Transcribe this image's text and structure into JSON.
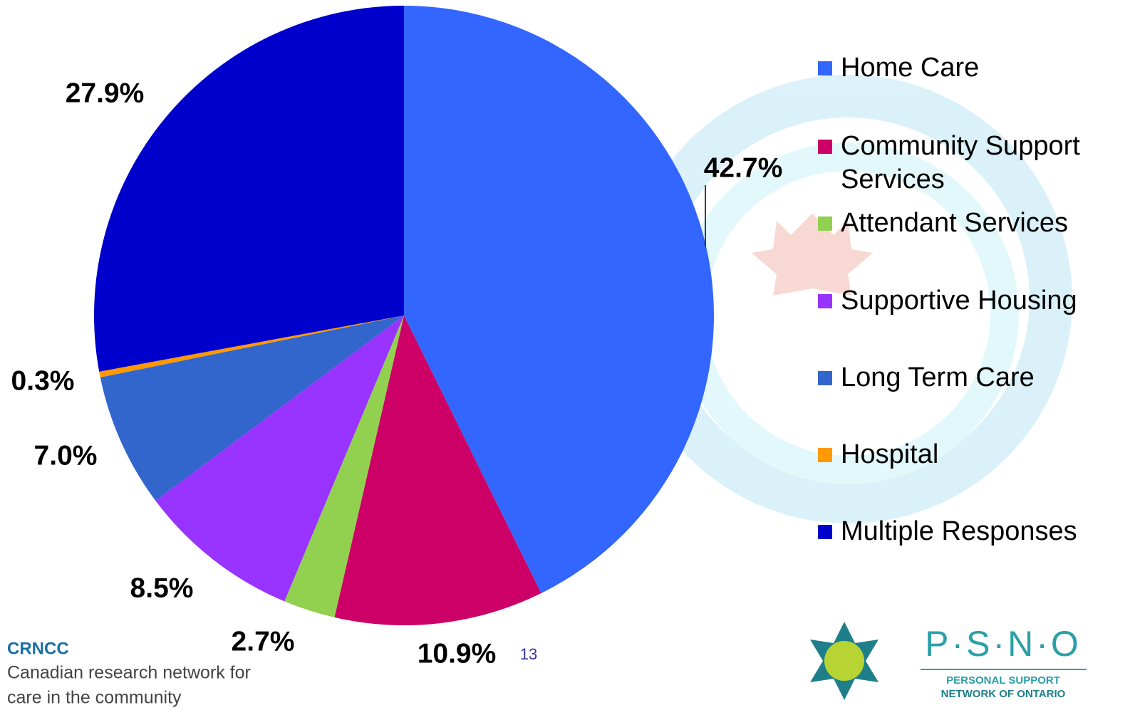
{
  "chart_data": {
    "type": "pie",
    "categories": [
      "Home Care",
      "Community Support Services",
      "Attendant Services",
      "Supportive Housing",
      "Long Term Care",
      "Hospital",
      "Multiple Responses"
    ],
    "values": [
      42.7,
      10.9,
      2.7,
      8.5,
      7.0,
      0.3,
      27.9
    ],
    "value_labels": [
      "42.7%",
      "10.9%",
      "2.7%",
      "8.5%",
      "7.0%",
      "0.3%",
      "27.9%"
    ],
    "colors": [
      "#3366ff",
      "#cc0066",
      "#92d050",
      "#9933ff",
      "#3366cc",
      "#ff9900",
      "#0000cc"
    ],
    "legend": "right"
  },
  "footer": {
    "org": "CRNCC",
    "org_name": [
      "Canadian research network for",
      "care in the community"
    ],
    "page": "13",
    "partner": "P·S·N·O",
    "partner_name": [
      "PERSONAL SUPPORT",
      "NETWORK OF ONTARIO"
    ]
  }
}
